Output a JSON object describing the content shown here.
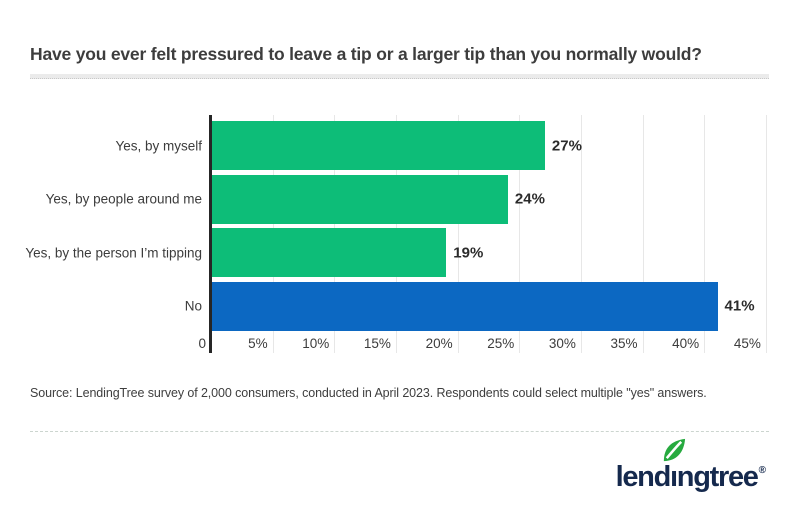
{
  "title": "Have you ever felt pressured to leave a tip or a larger tip than you normally would?",
  "chart_data": {
    "type": "bar",
    "orientation": "horizontal",
    "title": "Have you ever felt pressured to leave a tip or a larger tip than you normally would?",
    "categories": [
      "Yes, by myself",
      "Yes, by people around me",
      "Yes, by the person I’m tipping",
      "No"
    ],
    "values": [
      27,
      24,
      19,
      41
    ],
    "value_labels": [
      "27%",
      "24%",
      "19%",
      "41%"
    ],
    "bar_colors": [
      "#0dbd78",
      "#0dbd78",
      "#0dbd78",
      "#0c68c2"
    ],
    "xlabel": "",
    "ylabel": "",
    "xlim": [
      0,
      45.5
    ],
    "tick_values": [
      0,
      5,
      10,
      15,
      20,
      25,
      30,
      35,
      40,
      45
    ],
    "tick_labels": [
      "0",
      "5%",
      "10%",
      "15%",
      "20%",
      "25%",
      "30%",
      "35%",
      "40%",
      "45%"
    ],
    "grid": "vertical",
    "legend": "none"
  },
  "source_note": "Source: LendingTree survey of 2,000 consumers, conducted in April 2023. Respondents could select multiple \"yes\" answers.",
  "footer": {
    "logo_text": "lendingtree",
    "registered_mark": "®"
  },
  "colors": {
    "bar_green": "#0dbd78",
    "bar_blue": "#0c68c2",
    "axis_line": "#262626",
    "gridline": "#e7e7e7",
    "title_text": "#3d3d3d",
    "label_text": "#3c3c3c",
    "value_text": "#2b2b2b",
    "logo_navy": "#15294d",
    "leaf_green": "#27aa3f"
  }
}
